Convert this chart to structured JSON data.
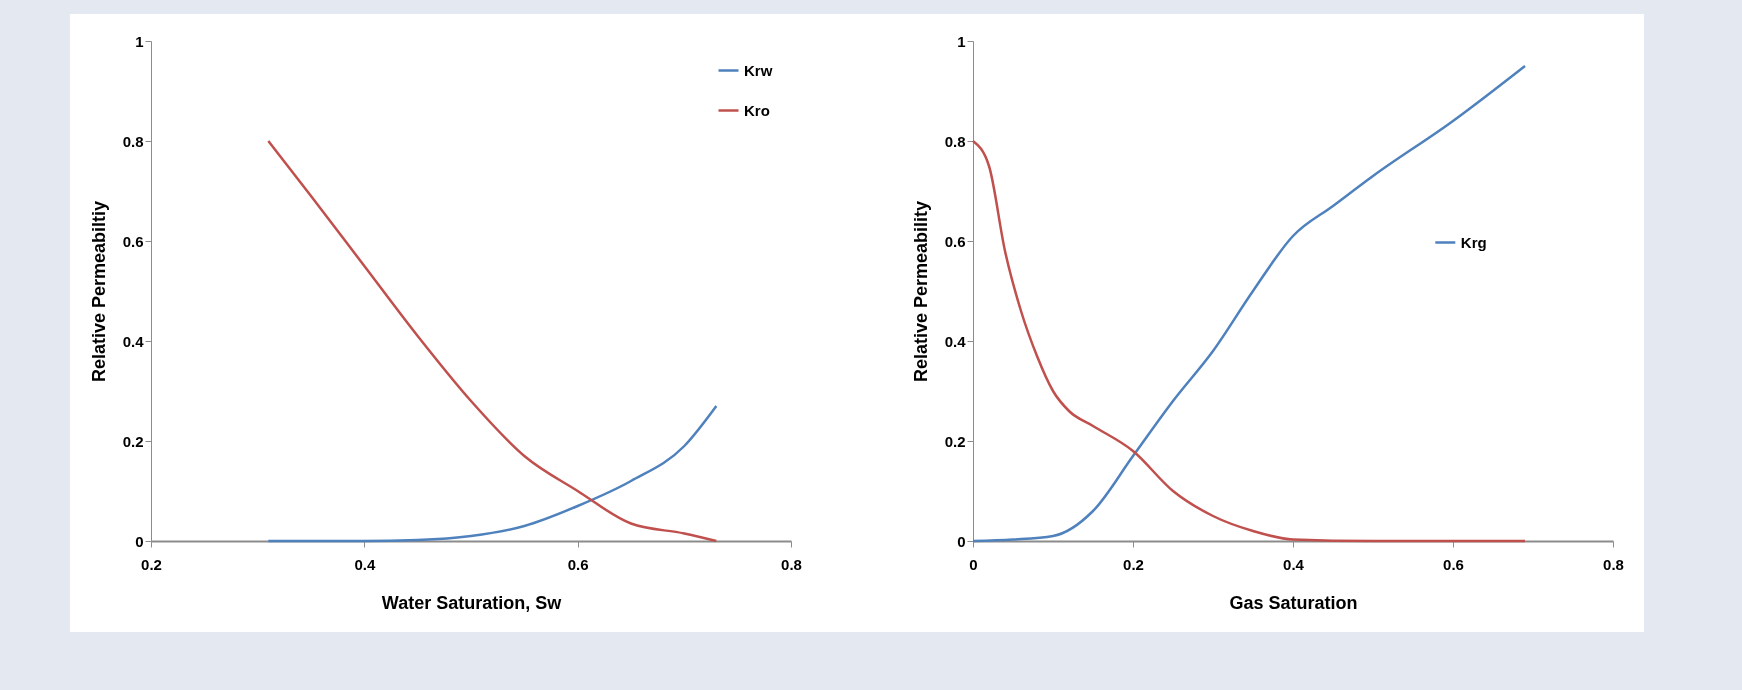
{
  "chart_data": [
    {
      "type": "line",
      "xlabel": "Water Saturation, Sw",
      "ylabel": "Relative Permeabiltiy",
      "xlim": [
        0.2,
        0.8
      ],
      "xticks": [
        0.2,
        0.4,
        0.6,
        0.8
      ],
      "ylim": [
        0,
        1
      ],
      "yticks": [
        0,
        0.2,
        0.4,
        0.6,
        0.8,
        1
      ],
      "legend": "top right",
      "marker": "none",
      "line_style": "solid",
      "series": [
        {
          "name": "Krw",
          "color": "#4f81bd",
          "x": [
            0.31,
            0.35,
            0.4,
            0.45,
            0.5,
            0.55,
            0.6,
            0.65,
            0.7,
            0.73
          ],
          "values": [
            0,
            0,
            0,
            0.002,
            0.01,
            0.03,
            0.07,
            0.12,
            0.19,
            0.27
          ]
        },
        {
          "name": "Kro",
          "color": "#c0504d",
          "x": [
            0.31,
            0.35,
            0.4,
            0.45,
            0.5,
            0.55,
            0.6,
            0.65,
            0.7,
            0.73
          ],
          "values": [
            0.8,
            0.69,
            0.55,
            0.41,
            0.28,
            0.17,
            0.1,
            0.035,
            0.015,
            0
          ]
        }
      ]
    },
    {
      "type": "line",
      "xlabel": "Gas Saturation",
      "ylabel": "Relative Permeability",
      "xlim": [
        0,
        0.8
      ],
      "xticks": [
        0,
        0.2,
        0.4,
        0.6,
        0.8
      ],
      "ylim": [
        0,
        1
      ],
      "yticks": [
        0,
        0.2,
        0.4,
        0.6,
        0.8,
        1
      ],
      "legend": "right",
      "marker": "none",
      "line_style": "solid",
      "series": [
        {
          "name": "Krg",
          "color": "#4f81bd",
          "x": [
            0,
            0.05,
            0.1,
            0.15,
            0.2,
            0.25,
            0.3,
            0.35,
            0.4,
            0.45,
            0.5,
            0.6,
            0.69
          ],
          "values": [
            0,
            0.003,
            0.01,
            0.06,
            0.17,
            0.28,
            0.38,
            0.5,
            0.61,
            0.67,
            0.73,
            0.84,
            0.95
          ]
        },
        {
          "color": "#c0504d",
          "x": [
            0,
            0.02,
            0.04,
            0.06,
            0.08,
            0.1,
            0.12,
            0.15,
            0.2,
            0.25,
            0.3,
            0.35,
            0.4,
            0.5,
            0.69
          ],
          "values": [
            0.8,
            0.75,
            0.58,
            0.46,
            0.37,
            0.3,
            0.26,
            0.23,
            0.18,
            0.1,
            0.05,
            0.02,
            0.003,
            0,
            0
          ]
        }
      ]
    }
  ]
}
